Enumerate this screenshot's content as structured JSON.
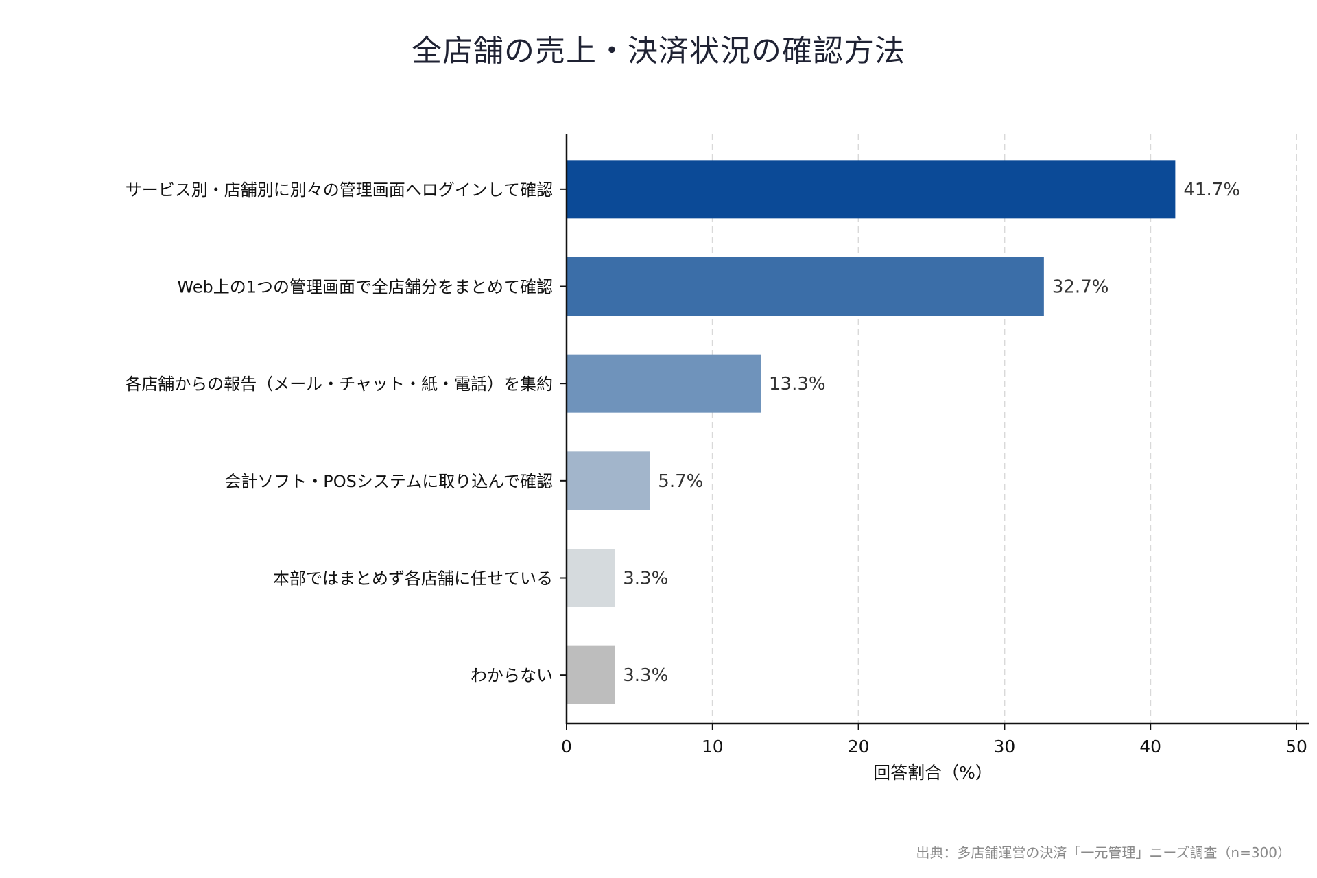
{
  "chart_data": {
    "type": "bar",
    "orientation": "horizontal",
    "title": "全店舗の売上・決済状況の確認方法",
    "xlabel": "回答割合（%）",
    "ylabel": "",
    "xlim": [
      0,
      50
    ],
    "xticks": [
      0,
      10,
      20,
      30,
      40,
      50
    ],
    "grid": "vertical dashed",
    "categories": [
      "サービス別・店舗別に別々の管理画面へログインして確認",
      "Web上の1つの管理画面で全店舗分をまとめて確認",
      "各店舗からの報告（メール・チャット・紙・電話）を集約",
      "会計ソフト・POSシステムに取り込んで確認",
      "本部ではまとめず各店舗に任せている",
      "わからない"
    ],
    "values": [
      41.7,
      32.7,
      13.3,
      5.7,
      3.3,
      3.3
    ],
    "value_labels": [
      "41.7%",
      "32.7%",
      "13.3%",
      "5.7%",
      "3.3%",
      "3.3%"
    ],
    "colors": [
      "#0b4a97",
      "#3b6ea8",
      "#6f93bb",
      "#a2b5cb",
      "#d5dadd",
      "#bdbdbd"
    ]
  },
  "source": "出典：多店舗運営の決済「一元管理」ニーズ調査（n=300）"
}
